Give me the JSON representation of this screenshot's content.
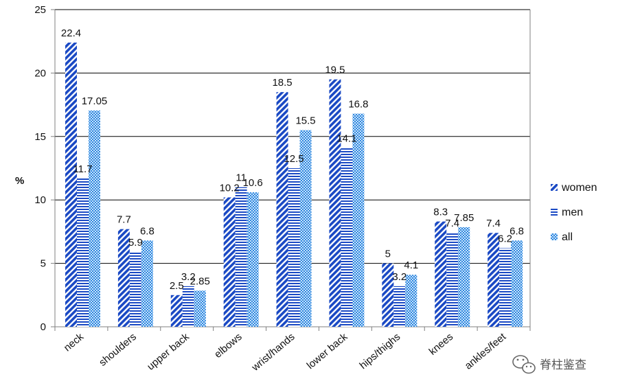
{
  "chart_data": {
    "type": "bar",
    "title": "",
    "xlabel": "",
    "ylabel": "%",
    "ylim": [
      0,
      25
    ],
    "yticks": [
      0,
      5,
      10,
      15,
      20,
      25
    ],
    "grid": true,
    "legend_position": "right",
    "categories": [
      "neck",
      "shoulders",
      "upper back",
      "elbows",
      "wrist/hands",
      "lower back",
      "hips/thighs",
      "knees",
      "ankles/feet"
    ],
    "series": [
      {
        "name": "women",
        "values": [
          22.4,
          7.7,
          2.5,
          10.2,
          18.5,
          19.5,
          5,
          8.3,
          7.4
        ],
        "labels": [
          "22.4",
          "7.7",
          "2.5",
          "10.2",
          "18.5",
          "19.5",
          "5",
          "8.3",
          "7.4"
        ]
      },
      {
        "name": "men",
        "values": [
          11.7,
          5.9,
          3.2,
          11,
          12.5,
          14.1,
          3.2,
          7.4,
          6.2
        ],
        "labels": [
          "11.7",
          "5.9",
          "3.2",
          "11",
          "12.5",
          "14.1",
          "3.2",
          "7.4",
          "6.2"
        ]
      },
      {
        "name": "all",
        "values": [
          17.05,
          6.8,
          2.85,
          10.6,
          15.5,
          16.8,
          4.1,
          7.85,
          6.8
        ],
        "labels": [
          "17.05",
          "6.8",
          "2.85",
          "10.6",
          "15.5",
          "16.8",
          "4.1",
          "7.85",
          "6.8"
        ]
      }
    ],
    "colors": {
      "women": "#1a49c4",
      "men": "#1a49c4",
      "all": "#3a8ee0",
      "grid": "#000000"
    }
  },
  "watermark": {
    "icon": "wechat-icon",
    "text": "脊柱鉴查"
  }
}
